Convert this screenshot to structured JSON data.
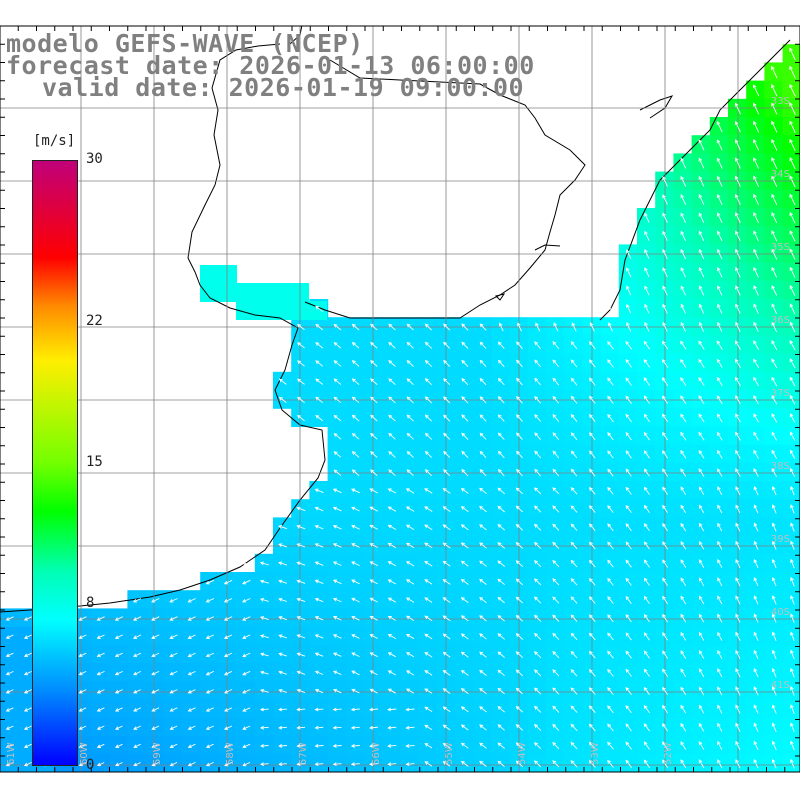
{
  "title": {
    "line1": "modelo GEFS-WAVE (NCEP)",
    "line2": "forecast date: 2026-01-13 06:00:00",
    "line3": "valid date: 2026-01-19 09:00:00"
  },
  "colorbar": {
    "units": "[m/s]",
    "ticks": [
      {
        "label": "30",
        "value": 30
      },
      {
        "label": "22",
        "value": 22
      },
      {
        "label": "15",
        "value": 15
      },
      {
        "label": "8",
        "value": 8
      },
      {
        "label": "0",
        "value": 0
      }
    ],
    "colors": [
      "#0000ff",
      "#0088ff",
      "#00ffff",
      "#00ffb5",
      "#00ff00",
      "#73ff00",
      "#ffee00",
      "#ff8a00",
      "#ff0000",
      "#c0007a"
    ]
  },
  "map": {
    "lat_labels": [
      "33S",
      "34S",
      "35S",
      "36S",
      "37S",
      "38S",
      "39S",
      "40S",
      "41S"
    ],
    "lon_labels": [
      "61W",
      "60W",
      "59W",
      "58W",
      "57W",
      "56W",
      "55W",
      "54W",
      "53W",
      "52W"
    ],
    "land_color": "#ffffff",
    "grid_color": "#808080",
    "arrow_color": "#ffffff"
  }
}
